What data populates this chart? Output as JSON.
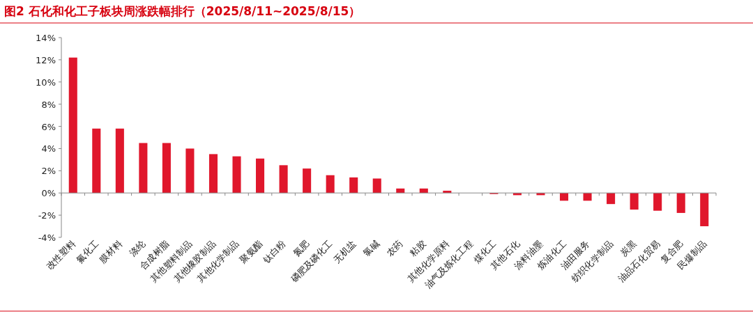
{
  "chart_data": {
    "type": "bar",
    "title": "图2  石化和化工子板块周涨跌幅排行（2025/8/11~2025/8/15）",
    "categories": [
      "改性塑料",
      "氟化工",
      "膜材料",
      "涤纶",
      "合成树脂",
      "其他塑料制品",
      "其他橡胶制品",
      "其他化学制品",
      "聚氨酯",
      "钛白粉",
      "氮肥",
      "磷肥及磷化工",
      "无机盐",
      "氯碱",
      "农药",
      "粘胶",
      "其他化学原料",
      "油气及炼化工程",
      "煤化工",
      "其他石化",
      "涂料油墨",
      "炼油化工",
      "油田服务",
      "纺织化学制品",
      "炭黑",
      "油品石化贸易",
      "复合肥",
      "民爆制品"
    ],
    "values": [
      12.2,
      5.8,
      5.8,
      4.5,
      4.5,
      4.0,
      3.5,
      3.3,
      3.1,
      2.5,
      2.2,
      1.6,
      1.4,
      1.3,
      0.4,
      0.4,
      0.2,
      0.0,
      -0.1,
      -0.2,
      -0.2,
      -0.7,
      -0.7,
      -1.0,
      -1.5,
      -1.6,
      -1.8,
      -3.0
    ],
    "color": "#e0172c",
    "ylim": [
      -4,
      14
    ],
    "yticks": [
      {
        "value": -4,
        "label": "-4%"
      },
      {
        "value": -2,
        "label": "-2%"
      },
      {
        "value": 0,
        "label": "0%"
      },
      {
        "value": 2,
        "label": "2%"
      },
      {
        "value": 4,
        "label": "4%"
      },
      {
        "value": 6,
        "label": "6%"
      },
      {
        "value": 8,
        "label": "8%"
      },
      {
        "value": 10,
        "label": "10%"
      },
      {
        "value": 12,
        "label": "12%"
      },
      {
        "value": 14,
        "label": "14%"
      }
    ]
  }
}
